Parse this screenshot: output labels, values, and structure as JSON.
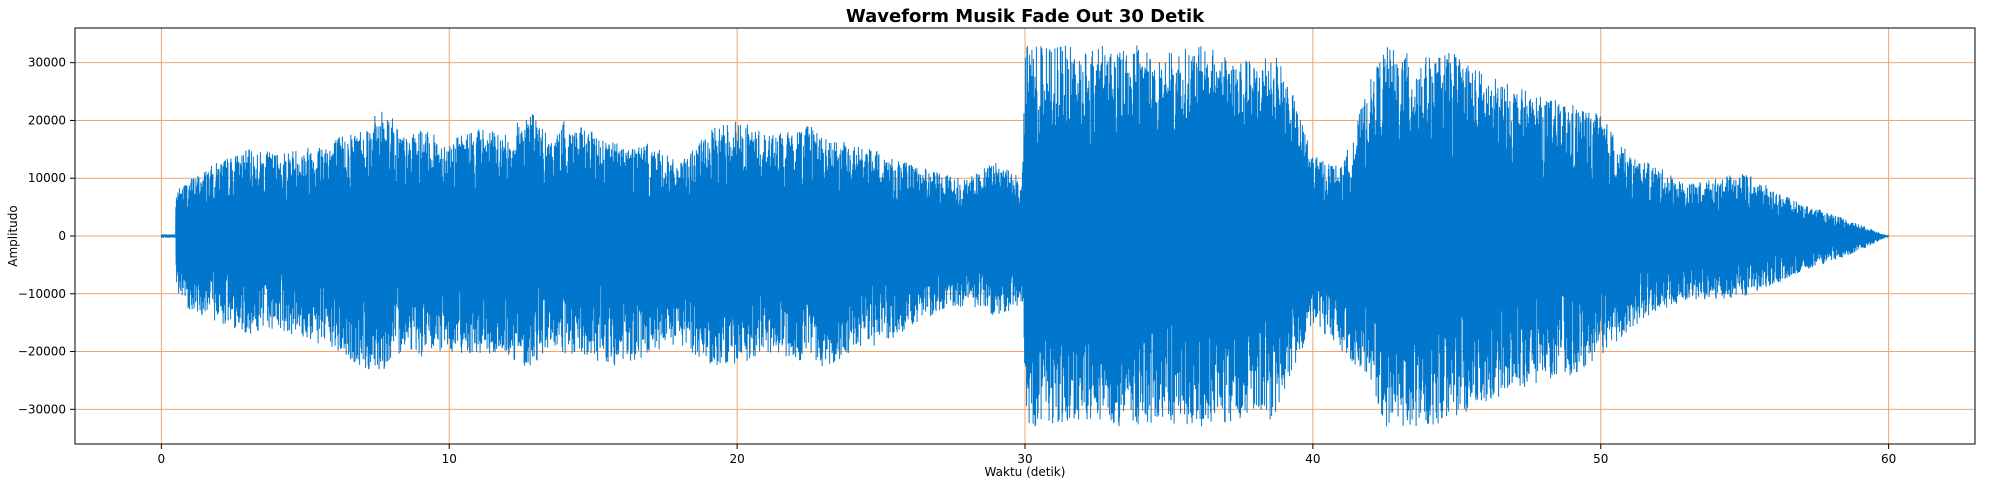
{
  "chart_data": {
    "type": "line",
    "title": "Waveform Musik Fade Out 30 Detik",
    "xlabel": "Waktu (detik)",
    "ylabel": "Amplitudo",
    "xlim": [
      -3,
      63
    ],
    "ylim": [
      -36000,
      36000
    ],
    "x_ticks": [
      0,
      10,
      20,
      30,
      40,
      50,
      60
    ],
    "x_tick_labels": [
      "0",
      "10",
      "20",
      "30",
      "40",
      "50",
      "60"
    ],
    "y_ticks": [
      -30000,
      -20000,
      -10000,
      0,
      10000,
      20000,
      30000
    ],
    "y_tick_labels": [
      "−30000",
      "−20000",
      "−10000",
      "0",
      "10000",
      "20000",
      "30000"
    ],
    "grid": true,
    "legend": "none",
    "colors": {
      "line": "#0077cc",
      "grid": "#f4a46a"
    },
    "series": [
      {
        "x": [
          0,
          0.5,
          0.5,
          1,
          2,
          3,
          4,
          5,
          6,
          7,
          7.8,
          8.5,
          9,
          10,
          11,
          12,
          12.8,
          13.5,
          14,
          15,
          16,
          17,
          18,
          19,
          19.8,
          21,
          22,
          22.5,
          23,
          24,
          25,
          26,
          27,
          28,
          29,
          29.9,
          30,
          30.2,
          31,
          32,
          33,
          34,
          35,
          36,
          37,
          38,
          38.5,
          39,
          40,
          41,
          42,
          42.5,
          43,
          44,
          45,
          46,
          47,
          48,
          49,
          50,
          51,
          52,
          53,
          54,
          55,
          56,
          57,
          58,
          59,
          60
        ],
        "env_max": [
          300,
          300,
          8000,
          10000,
          13000,
          15000,
          14500,
          15500,
          17000,
          19000,
          22500,
          17000,
          18500,
          16500,
          19000,
          17500,
          22500,
          16500,
          20000,
          18000,
          16000,
          16000,
          12500,
          18000,
          20500,
          18000,
          18000,
          20500,
          17000,
          16000,
          14500,
          12500,
          11000,
          10000,
          13000,
          10000,
          33000,
          33000,
          33000,
          33000,
          33000,
          33000,
          32000,
          33000,
          32000,
          30000,
          33000,
          29000,
          14000,
          12000,
          27000,
          33000,
          32000,
          31000,
          32000,
          28000,
          26000,
          24000,
          23000,
          21000,
          14000,
          12000,
          9000,
          10000,
          11000,
          8000,
          5500,
          4000,
          2000,
          0
        ],
        "env_min": [
          -300,
          -300,
          -10000,
          -13000,
          -15000,
          -17000,
          -16000,
          -18000,
          -20000,
          -23500,
          -23000,
          -19000,
          -21000,
          -20000,
          -20500,
          -21000,
          -23000,
          -19000,
          -21000,
          -21500,
          -23000,
          -21000,
          -19000,
          -22000,
          -23000,
          -20000,
          -22000,
          -21000,
          -23000,
          -20000,
          -19000,
          -16000,
          -13000,
          -12000,
          -14000,
          -12000,
          -32000,
          -33000,
          -33000,
          -32500,
          -33000,
          -33000,
          -33000,
          -33000,
          -33000,
          -30000,
          -32000,
          -28000,
          -15000,
          -20000,
          -25000,
          -33000,
          -33000,
          -33000,
          -32000,
          -29000,
          -27000,
          -25000,
          -24000,
          -22000,
          -16000,
          -13000,
          -11000,
          -11000,
          -10500,
          -8500,
          -6000,
          -4500,
          -2500,
          0
        ]
      }
    ]
  }
}
